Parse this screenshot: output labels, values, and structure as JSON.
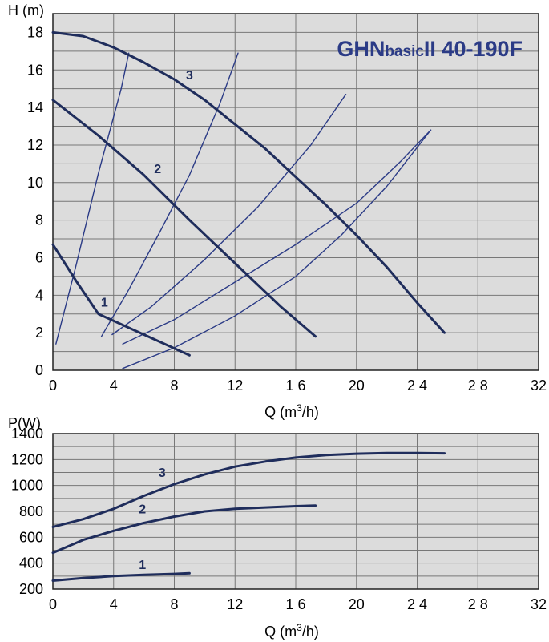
{
  "colors": {
    "plot_bg": "#dcdcdc",
    "grid": "#777777",
    "frame": "#222222",
    "main_curve": "#1f2d5c",
    "system_curve": "#2b3b86",
    "title": "#2b3b86"
  },
  "chart_data": [
    {
      "type": "line",
      "title": "GHNbasicII 40-190F",
      "title_parts": {
        "prefix": "GHN",
        "sub": "basic",
        "suffix": "II",
        "model": "40-190F"
      },
      "ylabel": "H (m)",
      "xlabel": "Q (m",
      "xlabel_sup": "3",
      "xlabel_end": "/h)",
      "xlim": [
        0,
        32
      ],
      "ylim": [
        0,
        19
      ],
      "x_ticks": [
        0,
        4,
        8,
        12,
        16,
        20,
        24,
        28,
        32
      ],
      "x_tick_labels": [
        "0",
        "4",
        "8",
        "12",
        "1 6",
        "20",
        "2 4",
        "2 8",
        "32"
      ],
      "y_ticks": [
        0,
        2,
        4,
        6,
        8,
        10,
        12,
        14,
        16,
        18
      ],
      "y_tick_labels": [
        "0",
        "2",
        "4",
        "6",
        "8",
        "10",
        "12",
        "14",
        "16",
        "18"
      ],
      "x_grid_step": 4,
      "y_grid_step": 1,
      "grid": true,
      "series": [
        {
          "name": "1",
          "role": "speed",
          "x": [
            0,
            1.5,
            3.0,
            6.0,
            9.0
          ],
          "y": [
            6.7,
            4.8,
            3.0,
            1.9,
            0.8
          ]
        },
        {
          "name": "2",
          "role": "speed",
          "x": [
            0,
            3,
            6,
            9,
            12,
            15,
            17.3
          ],
          "y": [
            14.4,
            12.5,
            10.4,
            8.0,
            5.7,
            3.4,
            1.8
          ]
        },
        {
          "name": "3",
          "role": "speed",
          "x": [
            0,
            2,
            4,
            6,
            8,
            10,
            12,
            14,
            16,
            18,
            20,
            22,
            24,
            25.8
          ],
          "y": [
            18.0,
            17.8,
            17.2,
            16.4,
            15.5,
            14.4,
            13.1,
            11.8,
            10.3,
            8.8,
            7.2,
            5.5,
            3.6,
            2.0
          ]
        }
      ],
      "system_curves": [
        {
          "x": [
            0.2,
            1.5,
            3.0,
            4.5,
            5.0
          ],
          "y": [
            1.4,
            5.5,
            10.5,
            15.0,
            16.9
          ]
        },
        {
          "x": [
            3.2,
            5.0,
            7.0,
            9.0,
            11.0,
            12.2
          ],
          "y": [
            1.8,
            4.3,
            7.3,
            10.4,
            14.2,
            16.9
          ]
        },
        {
          "x": [
            3.9,
            6.5,
            10.0,
            13.5,
            17.0,
            19.3
          ],
          "y": [
            1.9,
            3.4,
            5.9,
            8.7,
            12.0,
            14.7
          ]
        },
        {
          "x": [
            4.6,
            8.0,
            12.0,
            16.0,
            20.0,
            23.0,
            24.9
          ],
          "y": [
            1.4,
            2.7,
            4.7,
            6.7,
            8.9,
            11.2,
            12.8
          ]
        },
        {
          "x": [
            4.6,
            8.0,
            12.0,
            16.0,
            19.0,
            22.0,
            24.9
          ],
          "y": [
            0.1,
            1.2,
            2.9,
            5.0,
            7.2,
            9.8,
            12.8
          ]
        }
      ],
      "annotations": [
        {
          "text": "1",
          "x": 3.4,
          "y": 3.4
        },
        {
          "text": "2",
          "x": 6.9,
          "y": 10.5
        },
        {
          "text": "3",
          "x": 9.0,
          "y": 15.5
        }
      ]
    },
    {
      "type": "line",
      "title": "",
      "ylabel": "P(W)",
      "xlabel": "Q (m",
      "xlabel_sup": "3",
      "xlabel_end": "/h)",
      "xlim": [
        0,
        32
      ],
      "ylim": [
        200,
        1400
      ],
      "x_ticks": [
        0,
        4,
        8,
        12,
        16,
        20,
        24,
        28,
        32
      ],
      "x_tick_labels": [
        "0",
        "4",
        "8",
        "12",
        "1 6",
        "20",
        "2 4",
        "2 8",
        "32"
      ],
      "y_ticks": [
        200,
        400,
        600,
        800,
        1000,
        1200,
        1400
      ],
      "y_tick_labels": [
        "200",
        "400",
        "600",
        "800",
        "1000",
        "1200",
        "1400"
      ],
      "x_grid_step": 4,
      "y_grid_step": 100,
      "grid": true,
      "series": [
        {
          "name": "1",
          "x": [
            0,
            2,
            4,
            6,
            8,
            9.0
          ],
          "y": [
            265,
            285,
            300,
            310,
            317,
            322
          ]
        },
        {
          "name": "2",
          "x": [
            0,
            2,
            4,
            6,
            8,
            10,
            12,
            14,
            16,
            17.3
          ],
          "y": [
            480,
            580,
            650,
            710,
            760,
            800,
            820,
            830,
            840,
            845
          ]
        },
        {
          "name": "3",
          "x": [
            0,
            2,
            4,
            6,
            8,
            10,
            12,
            14,
            16,
            18,
            20,
            22,
            24,
            25.8
          ],
          "y": [
            680,
            740,
            820,
            920,
            1010,
            1085,
            1145,
            1185,
            1215,
            1235,
            1245,
            1250,
            1250,
            1248
          ]
        }
      ],
      "annotations": [
        {
          "text": "1",
          "x": 5.9,
          "y": 355
        },
        {
          "text": "2",
          "x": 5.9,
          "y": 785
        },
        {
          "text": "3",
          "x": 7.2,
          "y": 1065
        }
      ]
    }
  ]
}
